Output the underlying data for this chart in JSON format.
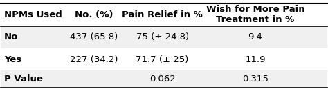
{
  "col_headers": [
    "NPMs Used",
    "No. (%)",
    "Pain Relief in %",
    "Wish for More Pain\nTreatment in %"
  ],
  "rows": [
    [
      "No",
      "437 (65.8)",
      "75 (± 24.8)",
      "9.4"
    ],
    [
      "Yes",
      "227 (34.2)",
      "71.7 (± 25)",
      "11.9"
    ],
    [
      "P Value",
      "",
      "0.062",
      "0.315"
    ]
  ],
  "bg_colors": [
    "#f0f0f0",
    "#ffffff",
    "#f0f0f0"
  ],
  "font_size": 9.5,
  "header_font_size": 9.5
}
